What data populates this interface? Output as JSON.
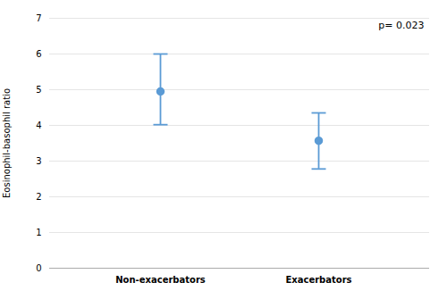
{
  "chart_data": {
    "type": "errorbar",
    "categories": [
      "Non-exacerbators",
      "Exacerbators"
    ],
    "values": [
      4.95,
      3.57
    ],
    "ci_lower": [
      4.02,
      2.78
    ],
    "ci_upper": [
      6.0,
      4.35
    ],
    "ylabel": "Eosinophil-basophil ratio",
    "ylim": [
      0,
      7
    ],
    "yticks": [
      0,
      1,
      2,
      3,
      4,
      5,
      6,
      7
    ],
    "annotation": "p= 0.023",
    "color": "#5B9BD5",
    "grid": true
  }
}
